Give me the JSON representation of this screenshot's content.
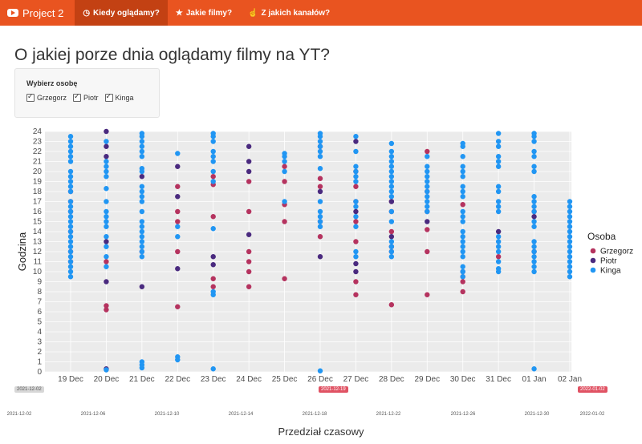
{
  "navbar": {
    "brand": "Project 2",
    "tabs": [
      {
        "label": "Kiedy oglądamy?",
        "icon": "clock-icon",
        "active": true
      },
      {
        "label": "Jakie filmy?",
        "icon": "star-icon",
        "active": false
      },
      {
        "label": "Z jakich kanałów?",
        "icon": "thumbs-up-icon",
        "active": false
      }
    ]
  },
  "page_title": "O jakiej porze dnia oglądamy filmy na YT?",
  "selector": {
    "label": "Wybierz osobę",
    "options": [
      {
        "label": "Grzegorz",
        "checked": true
      },
      {
        "label": "Piotr",
        "checked": true
      },
      {
        "label": "Kinga",
        "checked": true
      }
    ]
  },
  "colors": {
    "accent": "#e95420",
    "Grzegorz": "#b5335f",
    "Piotr": "#4a2a7f",
    "Kinga": "#2196f3",
    "slider": "#e05263"
  },
  "chart_data": {
    "type": "scatter",
    "xlabel": "Przedział czasowy",
    "ylabel": "Godzina",
    "ylim": [
      0,
      24
    ],
    "categories": [
      "19 Dec",
      "20 Dec",
      "21 Dec",
      "22 Dec",
      "23 Dec",
      "24 Dec",
      "25 Dec",
      "26 Dec",
      "27 Dec",
      "28 Dec",
      "29 Dec",
      "30 Dec",
      "31 Dec",
      "01 Jan",
      "02 Jan"
    ],
    "yticks": [
      "0",
      "1",
      "2",
      "3",
      "4",
      "5",
      "6",
      "7",
      "8",
      "9",
      "10",
      "11",
      "12",
      "13",
      "14",
      "15",
      "16",
      "17",
      "18",
      "19",
      "20",
      "21",
      "22",
      "23",
      "24"
    ],
    "legend": {
      "title": "Osoba",
      "position": "right",
      "entries": [
        "Grzegorz",
        "Piotr",
        "Kinga"
      ]
    },
    "grid": true,
    "series": [
      {
        "name": "Grzegorz",
        "points": [
          [
            0,
            11
          ],
          [
            0,
            12
          ],
          [
            0,
            14
          ],
          [
            0,
            17
          ],
          [
            0,
            18
          ],
          [
            1,
            6.2
          ],
          [
            1,
            6.6
          ],
          [
            1,
            11
          ],
          [
            2,
            12
          ],
          [
            3,
            6.5
          ],
          [
            3,
            12
          ],
          [
            3,
            15
          ],
          [
            3,
            16
          ],
          [
            3,
            18.5
          ],
          [
            4,
            8.5
          ],
          [
            4,
            9.3
          ],
          [
            4,
            15.5
          ],
          [
            4,
            18.7
          ],
          [
            4,
            19.5
          ],
          [
            5,
            8.5
          ],
          [
            5,
            10
          ],
          [
            5,
            11
          ],
          [
            5,
            12
          ],
          [
            5,
            16
          ],
          [
            5,
            19
          ],
          [
            6,
            9.3
          ],
          [
            6,
            15
          ],
          [
            6,
            16.7
          ],
          [
            6,
            19
          ],
          [
            6,
            20.5
          ],
          [
            7,
            13.5
          ],
          [
            7,
            15
          ],
          [
            7,
            18.5
          ],
          [
            7,
            19.3
          ],
          [
            8,
            7.7
          ],
          [
            8,
            9
          ],
          [
            8,
            13
          ],
          [
            8,
            15
          ],
          [
            8,
            17
          ],
          [
            8,
            18.5
          ],
          [
            8,
            20
          ],
          [
            9,
            6.7
          ],
          [
            9,
            12
          ],
          [
            9,
            14
          ],
          [
            9,
            16
          ],
          [
            9,
            17
          ],
          [
            10,
            7.7
          ],
          [
            10,
            12
          ],
          [
            10,
            14.2
          ],
          [
            10,
            18
          ],
          [
            10,
            22
          ],
          [
            11,
            8
          ],
          [
            11,
            9
          ],
          [
            11,
            9.5
          ],
          [
            11,
            16.7
          ],
          [
            12,
            11.5
          ],
          [
            13,
            16
          ]
        ]
      },
      {
        "name": "Piotr",
        "points": [
          [
            0,
            16
          ],
          [
            1,
            0.3
          ],
          [
            1,
            9
          ],
          [
            1,
            13
          ],
          [
            1,
            21.5
          ],
          [
            1,
            22.5
          ],
          [
            1,
            24
          ],
          [
            2,
            8.5
          ],
          [
            2,
            19.5
          ],
          [
            3,
            10.3
          ],
          [
            3,
            17.5
          ],
          [
            3,
            20.5
          ],
          [
            4,
            10.7
          ],
          [
            4,
            11.5
          ],
          [
            5,
            13.7
          ],
          [
            5,
            20
          ],
          [
            5,
            21
          ],
          [
            5,
            22.5
          ],
          [
            7,
            11.5
          ],
          [
            7,
            18
          ],
          [
            7,
            22.5
          ],
          [
            8,
            10
          ],
          [
            8,
            10.8
          ],
          [
            8,
            16
          ],
          [
            8,
            23
          ],
          [
            9,
            12.5
          ],
          [
            9,
            13.5
          ],
          [
            9,
            17
          ],
          [
            10,
            15
          ],
          [
            10,
            16
          ],
          [
            11,
            10
          ],
          [
            12,
            14
          ],
          [
            13,
            12
          ],
          [
            13,
            15.5
          ]
        ]
      },
      {
        "name": "Kinga",
        "points": [
          [
            0,
            9.5
          ],
          [
            0,
            10
          ],
          [
            0,
            10.5
          ],
          [
            0,
            11
          ],
          [
            0,
            11.5
          ],
          [
            0,
            12
          ],
          [
            0,
            12.5
          ],
          [
            0,
            13
          ],
          [
            0,
            13.5
          ],
          [
            0,
            14
          ],
          [
            0,
            14.5
          ],
          [
            0,
            15
          ],
          [
            0,
            15.5
          ],
          [
            0,
            16
          ],
          [
            0,
            16.5
          ],
          [
            0,
            17
          ],
          [
            0,
            18
          ],
          [
            0,
            18.5
          ],
          [
            0,
            19
          ],
          [
            0,
            19.5
          ],
          [
            0,
            20
          ],
          [
            0,
            21
          ],
          [
            0,
            21.5
          ],
          [
            0,
            22
          ],
          [
            0,
            22.5
          ],
          [
            0,
            23
          ],
          [
            0,
            23.5
          ],
          [
            1,
            0.2
          ],
          [
            1,
            10.5
          ],
          [
            1,
            11.5
          ],
          [
            1,
            12.5
          ],
          [
            1,
            13.5
          ],
          [
            1,
            14.5
          ],
          [
            1,
            15
          ],
          [
            1,
            15.5
          ],
          [
            1,
            16
          ],
          [
            1,
            17
          ],
          [
            1,
            18.3
          ],
          [
            1,
            19.5
          ],
          [
            1,
            20
          ],
          [
            1,
            20.5
          ],
          [
            1,
            21
          ],
          [
            1,
            23
          ],
          [
            2,
            0.4
          ],
          [
            2,
            0.7
          ],
          [
            2,
            1
          ],
          [
            2,
            11.5
          ],
          [
            2,
            12
          ],
          [
            2,
            12.5
          ],
          [
            2,
            13
          ],
          [
            2,
            13.5
          ],
          [
            2,
            14
          ],
          [
            2,
            14.5
          ],
          [
            2,
            15
          ],
          [
            2,
            16
          ],
          [
            2,
            17
          ],
          [
            2,
            17.5
          ],
          [
            2,
            18
          ],
          [
            2,
            18.5
          ],
          [
            2,
            20
          ],
          [
            2,
            20.3
          ],
          [
            2,
            21.5
          ],
          [
            2,
            22
          ],
          [
            2,
            22.5
          ],
          [
            2,
            23
          ],
          [
            2,
            23.5
          ],
          [
            2,
            23.8
          ],
          [
            3,
            1.2
          ],
          [
            3,
            1.5
          ],
          [
            3,
            13.5
          ],
          [
            3,
            14.5
          ],
          [
            3,
            21.8
          ],
          [
            4,
            0.3
          ],
          [
            4,
            7.7
          ],
          [
            4,
            8
          ],
          [
            4,
            14.3
          ],
          [
            4,
            19
          ],
          [
            4,
            20
          ],
          [
            4,
            21
          ],
          [
            4,
            21.5
          ],
          [
            4,
            22
          ],
          [
            4,
            23
          ],
          [
            4,
            23.5
          ],
          [
            4,
            23.8
          ],
          [
            6,
            17
          ],
          [
            6,
            20
          ],
          [
            6,
            21
          ],
          [
            6,
            21.5
          ],
          [
            6,
            21.8
          ],
          [
            7,
            0.1
          ],
          [
            7,
            14.5
          ],
          [
            7,
            15
          ],
          [
            7,
            15.5
          ],
          [
            7,
            16
          ],
          [
            7,
            17
          ],
          [
            7,
            20.3
          ],
          [
            7,
            21.5
          ],
          [
            7,
            22
          ],
          [
            7,
            22.5
          ],
          [
            7,
            23
          ],
          [
            7,
            23.5
          ],
          [
            7,
            23.8
          ],
          [
            8,
            11.5
          ],
          [
            8,
            12
          ],
          [
            8,
            14.5
          ],
          [
            8,
            15.5
          ],
          [
            8,
            16.5
          ],
          [
            8,
            17
          ],
          [
            8,
            19
          ],
          [
            8,
            19.5
          ],
          [
            8,
            20
          ],
          [
            8,
            20.5
          ],
          [
            8,
            22
          ],
          [
            8,
            23.5
          ],
          [
            9,
            11.5
          ],
          [
            9,
            12
          ],
          [
            9,
            12.5
          ],
          [
            9,
            13
          ],
          [
            9,
            15
          ],
          [
            9,
            16
          ],
          [
            9,
            17.5
          ],
          [
            9,
            18
          ],
          [
            9,
            18.5
          ],
          [
            9,
            19
          ],
          [
            9,
            19.5
          ],
          [
            9,
            20
          ],
          [
            9,
            20.5
          ],
          [
            9,
            21
          ],
          [
            9,
            21.5
          ],
          [
            9,
            22
          ],
          [
            9,
            22.8
          ],
          [
            10,
            16
          ],
          [
            10,
            16.5
          ],
          [
            10,
            17
          ],
          [
            10,
            17.5
          ],
          [
            10,
            18
          ],
          [
            10,
            18.5
          ],
          [
            10,
            19
          ],
          [
            10,
            19.5
          ],
          [
            10,
            20
          ],
          [
            10,
            20.5
          ],
          [
            10,
            21.5
          ],
          [
            11,
            9.5
          ],
          [
            11,
            10
          ],
          [
            11,
            10.5
          ],
          [
            11,
            11.5
          ],
          [
            11,
            12
          ],
          [
            11,
            12.5
          ],
          [
            11,
            13
          ],
          [
            11,
            13.5
          ],
          [
            11,
            14
          ],
          [
            11,
            15
          ],
          [
            11,
            15.5
          ],
          [
            11,
            16
          ],
          [
            11,
            17.5
          ],
          [
            11,
            18
          ],
          [
            11,
            18.5
          ],
          [
            11,
            19.5
          ],
          [
            11,
            20
          ],
          [
            11,
            20.5
          ],
          [
            11,
            21.5
          ],
          [
            11,
            22.5
          ],
          [
            11,
            22.8
          ],
          [
            12,
            10
          ],
          [
            12,
            10.3
          ],
          [
            12,
            11
          ],
          [
            12,
            12
          ],
          [
            12,
            12.5
          ],
          [
            12,
            13
          ],
          [
            12,
            13.5
          ],
          [
            12,
            16
          ],
          [
            12,
            16.5
          ],
          [
            12,
            17
          ],
          [
            12,
            18
          ],
          [
            12,
            18.5
          ],
          [
            12,
            20.5
          ],
          [
            12,
            21
          ],
          [
            12,
            21.5
          ],
          [
            12,
            22.5
          ],
          [
            12,
            23
          ],
          [
            12,
            23.8
          ],
          [
            13,
            0.3
          ],
          [
            13,
            10
          ],
          [
            13,
            10.5
          ],
          [
            13,
            11
          ],
          [
            13,
            11.5
          ],
          [
            13,
            12
          ],
          [
            13,
            12.5
          ],
          [
            13,
            13
          ],
          [
            13,
            14.5
          ],
          [
            13,
            15
          ],
          [
            13,
            16
          ],
          [
            13,
            16.5
          ],
          [
            13,
            17
          ],
          [
            13,
            17.5
          ],
          [
            13,
            20
          ],
          [
            13,
            20.5
          ],
          [
            13,
            21.5
          ],
          [
            13,
            22
          ],
          [
            13,
            23
          ],
          [
            13,
            23.5
          ],
          [
            13,
            23.8
          ],
          [
            14,
            9.5
          ],
          [
            14,
            10
          ],
          [
            14,
            10.5
          ],
          [
            14,
            11
          ],
          [
            14,
            11.5
          ],
          [
            14,
            12
          ],
          [
            14,
            12.5
          ],
          [
            14,
            13
          ],
          [
            14,
            13.5
          ],
          [
            14,
            14
          ],
          [
            14,
            14.5
          ],
          [
            14,
            15
          ],
          [
            14,
            15.5
          ],
          [
            14,
            16
          ],
          [
            14,
            16.5
          ],
          [
            14,
            17
          ]
        ]
      }
    ]
  },
  "range_slider": {
    "range_start": "2021-12-19",
    "range_end": "2022-01-02",
    "min_label": "2021-12-02",
    "ticks": [
      "2021-12-02",
      "2021-12-06",
      "2021-12-10",
      "2021-12-14",
      "2021-12-18",
      "2021-12-22",
      "2021-12-26",
      "2021-12-30",
      "2022-01-02"
    ]
  }
}
